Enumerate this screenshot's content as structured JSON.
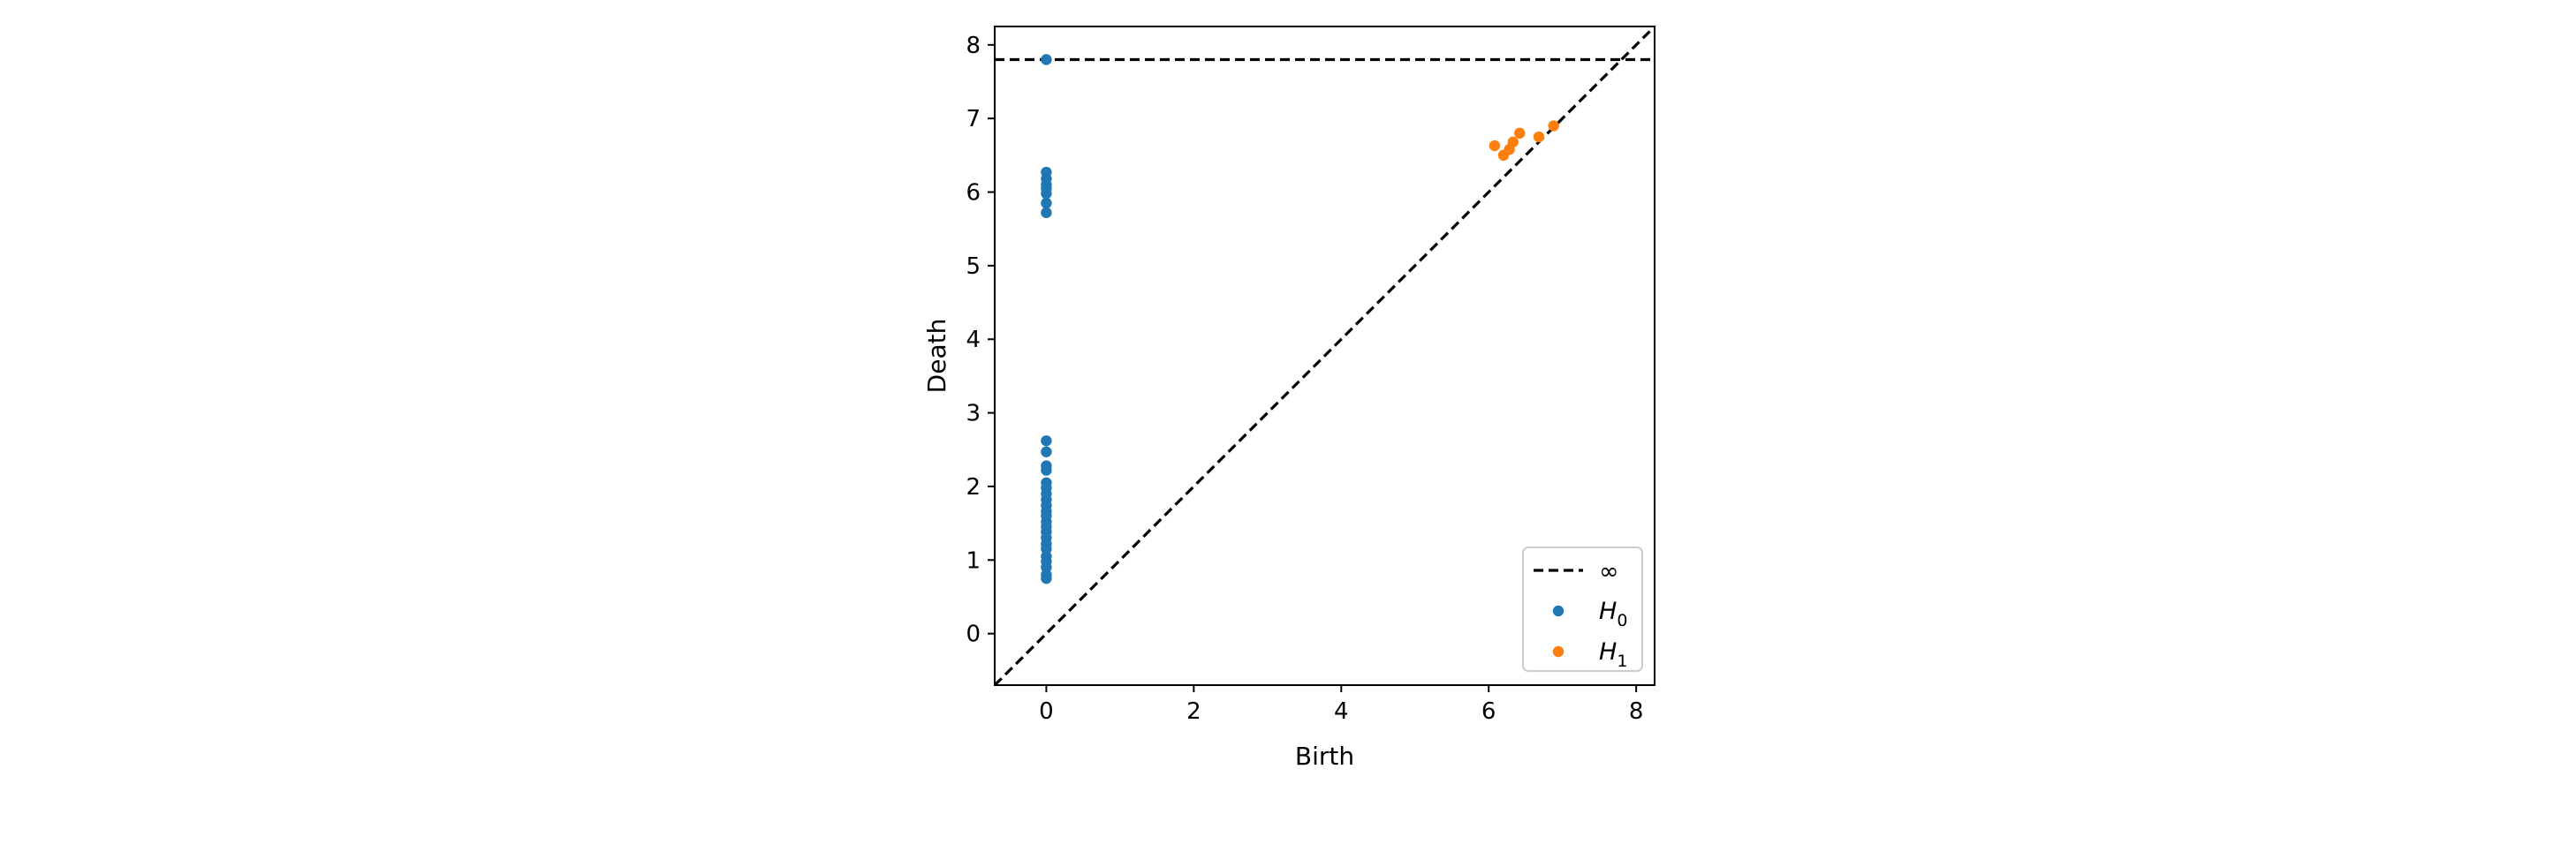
{
  "chart_data": {
    "type": "scatter",
    "title": "",
    "xlabel": "Birth",
    "ylabel": "Death",
    "xlim": [
      -0.7,
      8.25
    ],
    "ylim": [
      -0.7,
      8.25
    ],
    "xticks": [
      0,
      2,
      4,
      6,
      8
    ],
    "yticks": [
      0,
      1,
      2,
      3,
      4,
      5,
      6,
      7,
      8
    ],
    "grid": false,
    "legend_position": "bottom-right",
    "infinity_line": {
      "label": "∞",
      "y": 7.8,
      "style": "dashed",
      "color": "#000000"
    },
    "diagonal": {
      "style": "dashed",
      "color": "#000000"
    },
    "series": [
      {
        "name": "H",
        "subscript": "0",
        "color": "#1f77b4",
        "points": [
          [
            0,
            7.8
          ],
          [
            0,
            6.27
          ],
          [
            0,
            6.18
          ],
          [
            0,
            6.1
          ],
          [
            0,
            6.05
          ],
          [
            0,
            5.98
          ],
          [
            0,
            5.85
          ],
          [
            0,
            5.72
          ],
          [
            0,
            2.62
          ],
          [
            0,
            2.47
          ],
          [
            0,
            2.28
          ],
          [
            0,
            2.22
          ],
          [
            0,
            2.05
          ],
          [
            0,
            1.98
          ],
          [
            0,
            1.9
          ],
          [
            0,
            1.82
          ],
          [
            0,
            1.74
          ],
          [
            0,
            1.66
          ],
          [
            0,
            1.6
          ],
          [
            0,
            1.52
          ],
          [
            0,
            1.45
          ],
          [
            0,
            1.38
          ],
          [
            0,
            1.3
          ],
          [
            0,
            1.22
          ],
          [
            0,
            1.15
          ],
          [
            0,
            1.05
          ],
          [
            0,
            0.98
          ],
          [
            0,
            0.9
          ],
          [
            0,
            0.8
          ],
          [
            0,
            0.75
          ]
        ]
      },
      {
        "name": "H",
        "subscript": "1",
        "color": "#ff7f0e",
        "points": [
          [
            6.08,
            6.63
          ],
          [
            6.2,
            6.5
          ],
          [
            6.28,
            6.58
          ],
          [
            6.33,
            6.68
          ],
          [
            6.42,
            6.8
          ],
          [
            6.68,
            6.75
          ],
          [
            6.88,
            6.9
          ]
        ]
      }
    ]
  }
}
